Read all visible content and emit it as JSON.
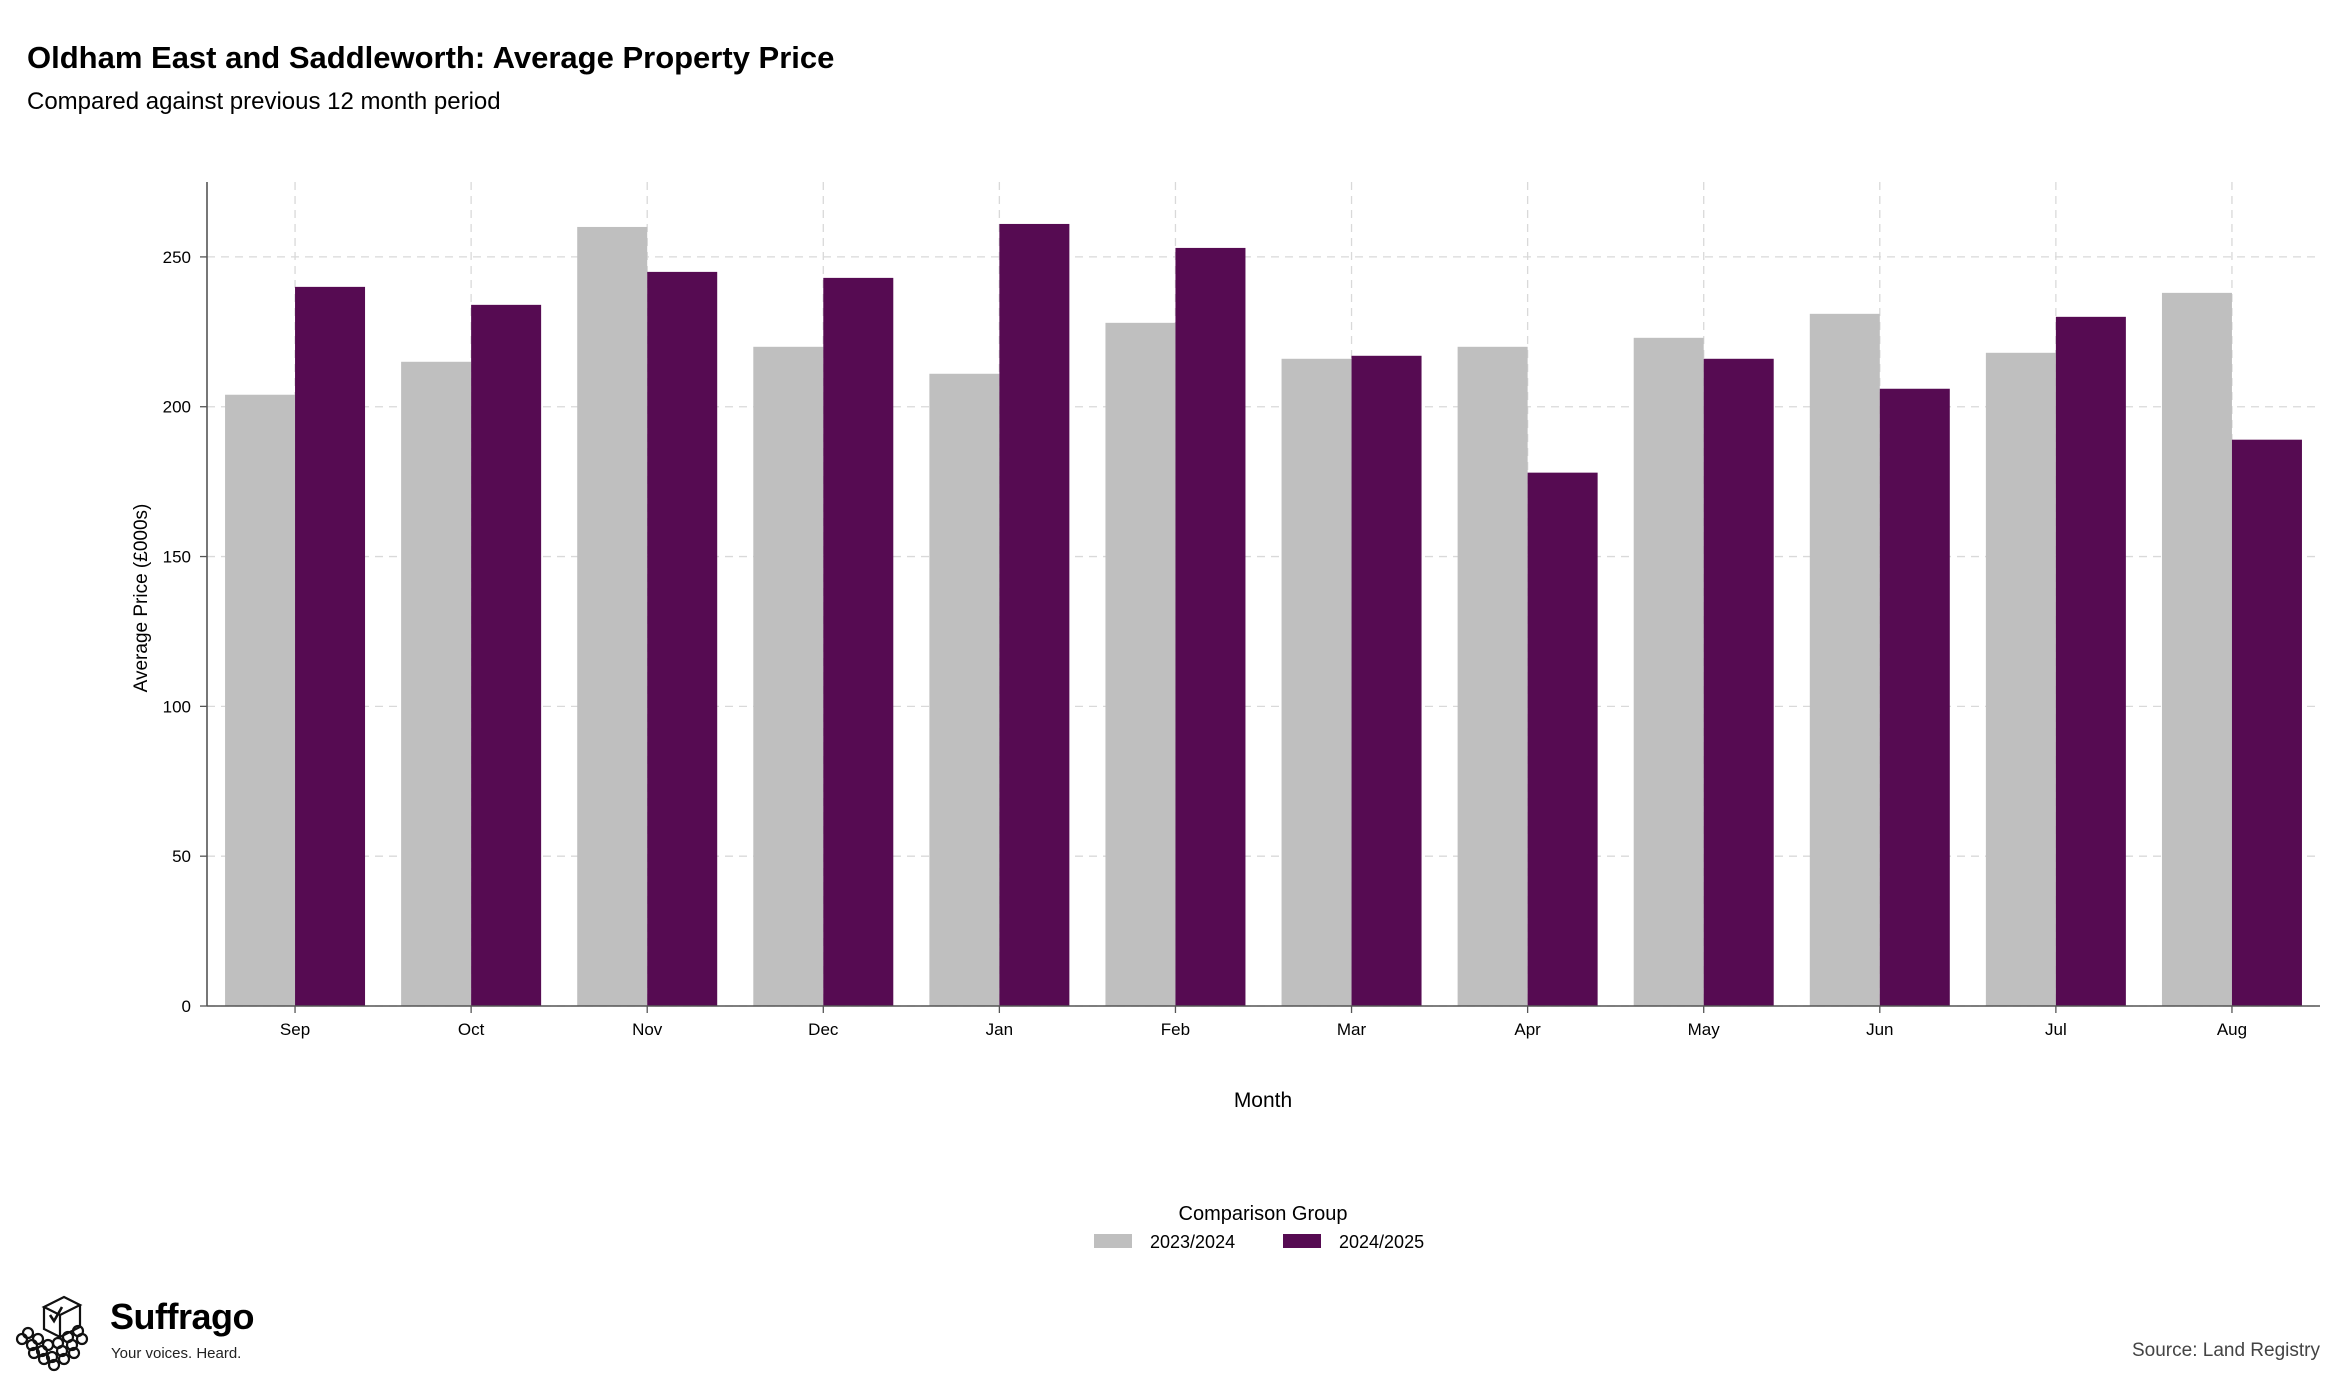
{
  "header": {
    "title": "Oldham East and Saddleworth: Average Property Price",
    "subtitle": "Compared against previous 12 month period"
  },
  "footer": {
    "brand": "Suffrago",
    "tagline": "Your voices. Heard.",
    "source": "Source: Land Registry"
  },
  "chart_data": {
    "type": "bar",
    "categories": [
      "Sep",
      "Oct",
      "Nov",
      "Dec",
      "Jan",
      "Feb",
      "Mar",
      "Apr",
      "May",
      "Jun",
      "Jul",
      "Aug"
    ],
    "series": [
      {
        "name": "2023/2024",
        "color": "#bfbfbf",
        "values": [
          204,
          215,
          260,
          220,
          211,
          228,
          216,
          220,
          223,
          231,
          218,
          238
        ]
      },
      {
        "name": "2024/2025",
        "color": "#560b52",
        "values": [
          240,
          234,
          245,
          243,
          261,
          253,
          217,
          178,
          216,
          206,
          230,
          189
        ]
      }
    ],
    "xlabel": "Month",
    "ylabel": "Average Price (£000s)",
    "ylim": [
      0,
      275
    ],
    "yticks": [
      0,
      50,
      100,
      150,
      200,
      250
    ],
    "grid": true,
    "legend_title": "Comparison Group",
    "legend_position": "bottom-center"
  }
}
